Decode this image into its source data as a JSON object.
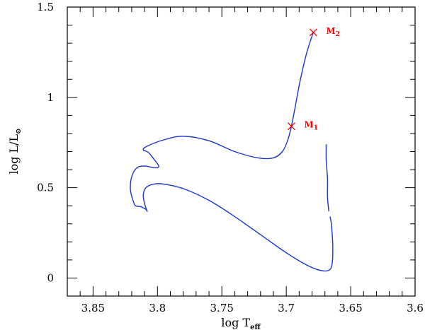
{
  "chart_data": {
    "type": "line",
    "title": "",
    "xlabel": {
      "main": "log  T",
      "sub": "eff"
    },
    "ylabel": {
      "main": "log L/L",
      "sub": "⊙"
    },
    "x_reversed": true,
    "xlim": [
      3.87,
      3.6
    ],
    "ylim": [
      -0.1,
      1.5
    ],
    "x_ticks": [
      3.85,
      3.8,
      3.75,
      3.7,
      3.65,
      3.6
    ],
    "x_tick_labels": [
      "3.85",
      "3.8",
      "3.75",
      "3.7",
      "3.65",
      "3.6"
    ],
    "y_ticks": [
      0,
      0.5,
      1,
      1.5
    ],
    "y_tick_labels": [
      "0",
      "0.5",
      "1",
      "1.5"
    ],
    "grid": false,
    "series": [
      {
        "color": "#1a35c8",
        "segments": [
          [
            [
              3.679,
              1.36
            ],
            [
              3.684,
              1.25
            ],
            [
              3.689,
              1.1
            ],
            [
              3.693,
              0.95
            ],
            [
              3.696,
              0.84
            ],
            [
              3.699,
              0.76
            ],
            [
              3.703,
              0.7
            ],
            [
              3.71,
              0.665
            ],
            [
              3.722,
              0.665
            ],
            [
              3.74,
              0.7
            ],
            [
              3.76,
              0.76
            ],
            [
              3.78,
              0.785
            ],
            [
              3.795,
              0.765
            ],
            [
              3.808,
              0.73
            ],
            [
              3.811,
              0.71
            ],
            [
              3.807,
              0.695
            ],
            [
              3.803,
              0.66
            ],
            [
              3.799,
              0.62
            ],
            [
              3.802,
              0.61
            ],
            [
              3.81,
              0.62
            ],
            [
              3.816,
              0.61
            ],
            [
              3.82,
              0.56
            ],
            [
              3.821,
              0.49
            ],
            [
              3.819,
              0.43
            ],
            [
              3.817,
              0.4
            ],
            [
              3.813,
              0.395
            ],
            [
              3.809,
              0.38
            ],
            [
              3.808,
              0.37
            ],
            [
              3.81,
              0.41
            ],
            [
              3.811,
              0.46
            ],
            [
              3.809,
              0.5
            ],
            [
              3.803,
              0.52
            ],
            [
              3.795,
              0.52
            ],
            [
              3.78,
              0.495
            ],
            [
              3.76,
              0.43
            ],
            [
              3.74,
              0.34
            ],
            [
              3.72,
              0.24
            ],
            [
              3.7,
              0.14
            ],
            [
              3.685,
              0.075
            ],
            [
              3.675,
              0.045
            ],
            [
              3.668,
              0.04
            ],
            [
              3.665,
              0.06
            ],
            [
              3.664,
              0.11
            ],
            [
              3.664,
              0.2
            ],
            [
              3.665,
              0.3
            ],
            [
              3.666,
              0.34
            ]
          ],
          [
            [
              3.667,
              0.37
            ],
            [
              3.668,
              0.45
            ],
            [
              3.668,
              0.55
            ],
            [
              3.669,
              0.65
            ],
            [
              3.669,
              0.74
            ]
          ]
        ]
      }
    ],
    "markers": [
      {
        "label_main": "M",
        "label_sub": "1",
        "x": 3.696,
        "y": 0.84,
        "color": "#ff0000"
      },
      {
        "label_main": "M",
        "label_sub": "2",
        "x": 3.679,
        "y": 1.36,
        "color": "#ff0000"
      }
    ]
  }
}
